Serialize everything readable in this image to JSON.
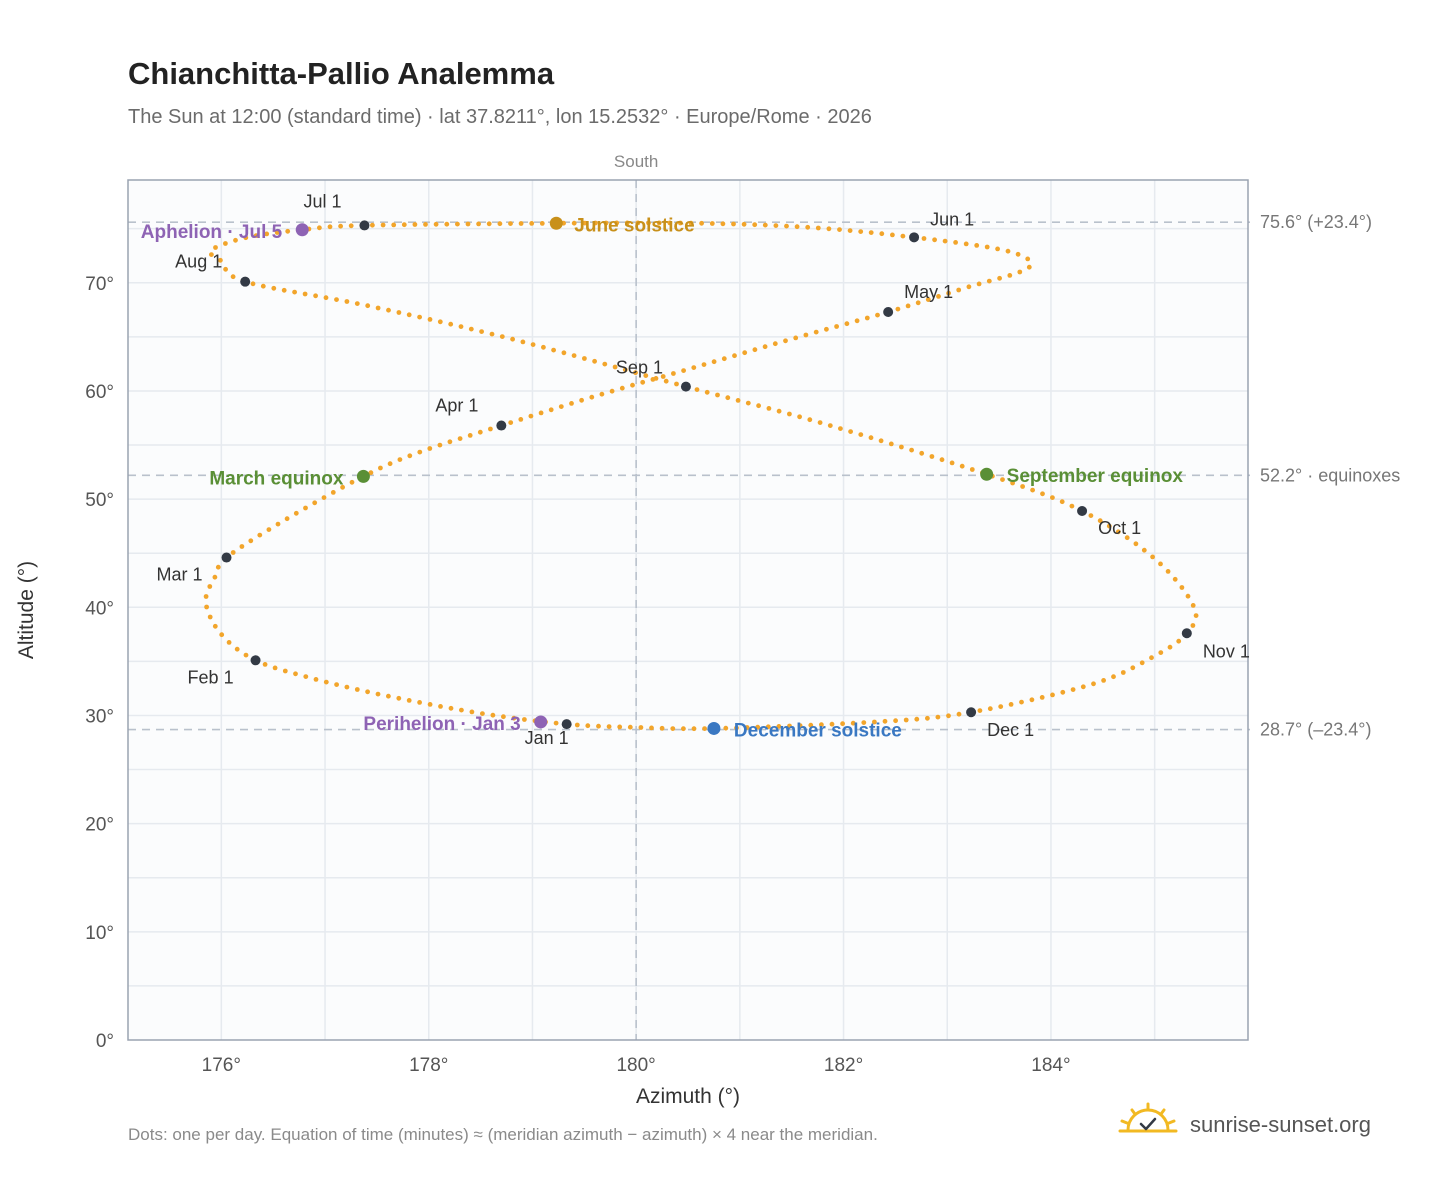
{
  "chart_data": {
    "type": "scatter",
    "title": "Chianchitta-Pallio Analemma",
    "subtitle": "The Sun at 12:00 (standard time) · lat 37.8211°, lon 15.2532° · Europe/Rome · 2026",
    "xlabel": "Azimuth (°)",
    "ylabel": "Altitude (°)",
    "xlim": [
      175.1,
      185.9
    ],
    "ylim": [
      0,
      79.5
    ],
    "x_ticks": [
      176,
      178,
      180,
      182,
      184
    ],
    "x_tick_labels": [
      "176°",
      "178°",
      "180°",
      "182°",
      "184°"
    ],
    "y_ticks": [
      0,
      10,
      20,
      30,
      40,
      50,
      60,
      70
    ],
    "y_tick_labels": [
      "0°",
      "10°",
      "20°",
      "30°",
      "40°",
      "50°",
      "60°",
      "70°"
    ],
    "grid": true,
    "meridian": {
      "x": 180,
      "label": "South"
    },
    "reference_lines": [
      {
        "y": 75.6,
        "label": "75.6° (+23.4°)"
      },
      {
        "y": 52.2,
        "label": "52.2° · equinoxes"
      },
      {
        "y": 28.7,
        "label": "28.7° (–23.4°)"
      }
    ],
    "series": [
      {
        "curve": [
          [
            179.33,
            29.2
          ],
          [
            178.5,
            30.2
          ],
          [
            177.55,
            31.9
          ],
          [
            176.85,
            33.5
          ],
          [
            176.33,
            35.1
          ],
          [
            176.0,
            37.5
          ],
          [
            175.85,
            40.5
          ],
          [
            175.95,
            43.0
          ],
          [
            176.05,
            44.6
          ],
          [
            176.6,
            48.0
          ],
          [
            177.37,
            52.1
          ],
          [
            177.9,
            54.3
          ],
          [
            178.7,
            56.8
          ],
          [
            179.6,
            59.5
          ],
          [
            180.5,
            62.0
          ],
          [
            181.5,
            64.8
          ],
          [
            182.43,
            67.3
          ],
          [
            183.2,
            69.6
          ],
          [
            183.7,
            71.0
          ],
          [
            183.8,
            72.0
          ],
          [
            183.5,
            73.1
          ],
          [
            182.68,
            74.2
          ],
          [
            181.7,
            75.1
          ],
          [
            180.6,
            75.5
          ],
          [
            179.23,
            75.5
          ],
          [
            177.38,
            75.3
          ],
          [
            176.78,
            74.9
          ],
          [
            176.25,
            74.2
          ],
          [
            175.9,
            73.0
          ],
          [
            176.0,
            72.0
          ],
          [
            176.23,
            70.1
          ],
          [
            177.4,
            67.9
          ],
          [
            178.8,
            64.8
          ],
          [
            180.48,
            60.4
          ],
          [
            181.8,
            57.0
          ],
          [
            183.38,
            52.3
          ],
          [
            184.3,
            48.9
          ],
          [
            185.0,
            44.5
          ],
          [
            185.38,
            40.0
          ],
          [
            185.31,
            37.6
          ],
          [
            185.0,
            35.5
          ],
          [
            184.4,
            32.9
          ],
          [
            183.23,
            30.3
          ],
          [
            182.3,
            29.4
          ],
          [
            180.75,
            28.8
          ],
          [
            180.0,
            28.9
          ],
          [
            179.33,
            29.2
          ]
        ]
      }
    ],
    "month_markers": [
      {
        "label": "Jan 1",
        "x": 179.33,
        "y": 29.2
      },
      {
        "label": "Feb 1",
        "x": 176.33,
        "y": 35.1
      },
      {
        "label": "Mar 1",
        "x": 176.05,
        "y": 44.6
      },
      {
        "label": "Apr 1",
        "x": 178.7,
        "y": 56.8
      },
      {
        "label": "May 1",
        "x": 182.43,
        "y": 67.3
      },
      {
        "label": "Jun 1",
        "x": 182.68,
        "y": 74.2
      },
      {
        "label": "Jul 1",
        "x": 177.38,
        "y": 75.3
      },
      {
        "label": "Aug 1",
        "x": 176.23,
        "y": 70.1
      },
      {
        "label": "Sep 1",
        "x": 180.48,
        "y": 60.4
      },
      {
        "label": "Oct 1",
        "x": 184.3,
        "y": 48.9
      },
      {
        "label": "Nov 1",
        "x": 185.31,
        "y": 37.6
      },
      {
        "label": "Dec 1",
        "x": 183.23,
        "y": 30.3
      }
    ],
    "events": [
      {
        "label": "June solstice",
        "x": 179.23,
        "y": 75.5,
        "color": "#c8901a"
      },
      {
        "label": "Aphelion · Jul 5",
        "x": 176.78,
        "y": 74.9,
        "color": "#8e63b4"
      },
      {
        "label": "March equinox",
        "x": 177.37,
        "y": 52.1,
        "color": "#5a8f36"
      },
      {
        "label": "September equinox",
        "x": 183.38,
        "y": 52.3,
        "color": "#5a8f36"
      },
      {
        "label": "Perihelion · Jan 3",
        "x": 179.08,
        "y": 29.4,
        "color": "#8e63b4"
      },
      {
        "label": "December solstice",
        "x": 180.75,
        "y": 28.8,
        "color": "#3a78c2"
      }
    ],
    "colors": {
      "analemma": "#f2a52b",
      "month_marker": "#333a45",
      "grid": "#e6eaef",
      "frame": "#9aa3b1",
      "reference": "#b9c1cc",
      "plot_background": "#fbfcfd"
    }
  },
  "footnote": "Dots: one per day. Equation of time (minutes) ≈ (meridian azimuth − azimuth) × 4 near the meridian.",
  "brand": {
    "name": "sunrise-sunset.org",
    "icon": "sun-check-icon"
  }
}
